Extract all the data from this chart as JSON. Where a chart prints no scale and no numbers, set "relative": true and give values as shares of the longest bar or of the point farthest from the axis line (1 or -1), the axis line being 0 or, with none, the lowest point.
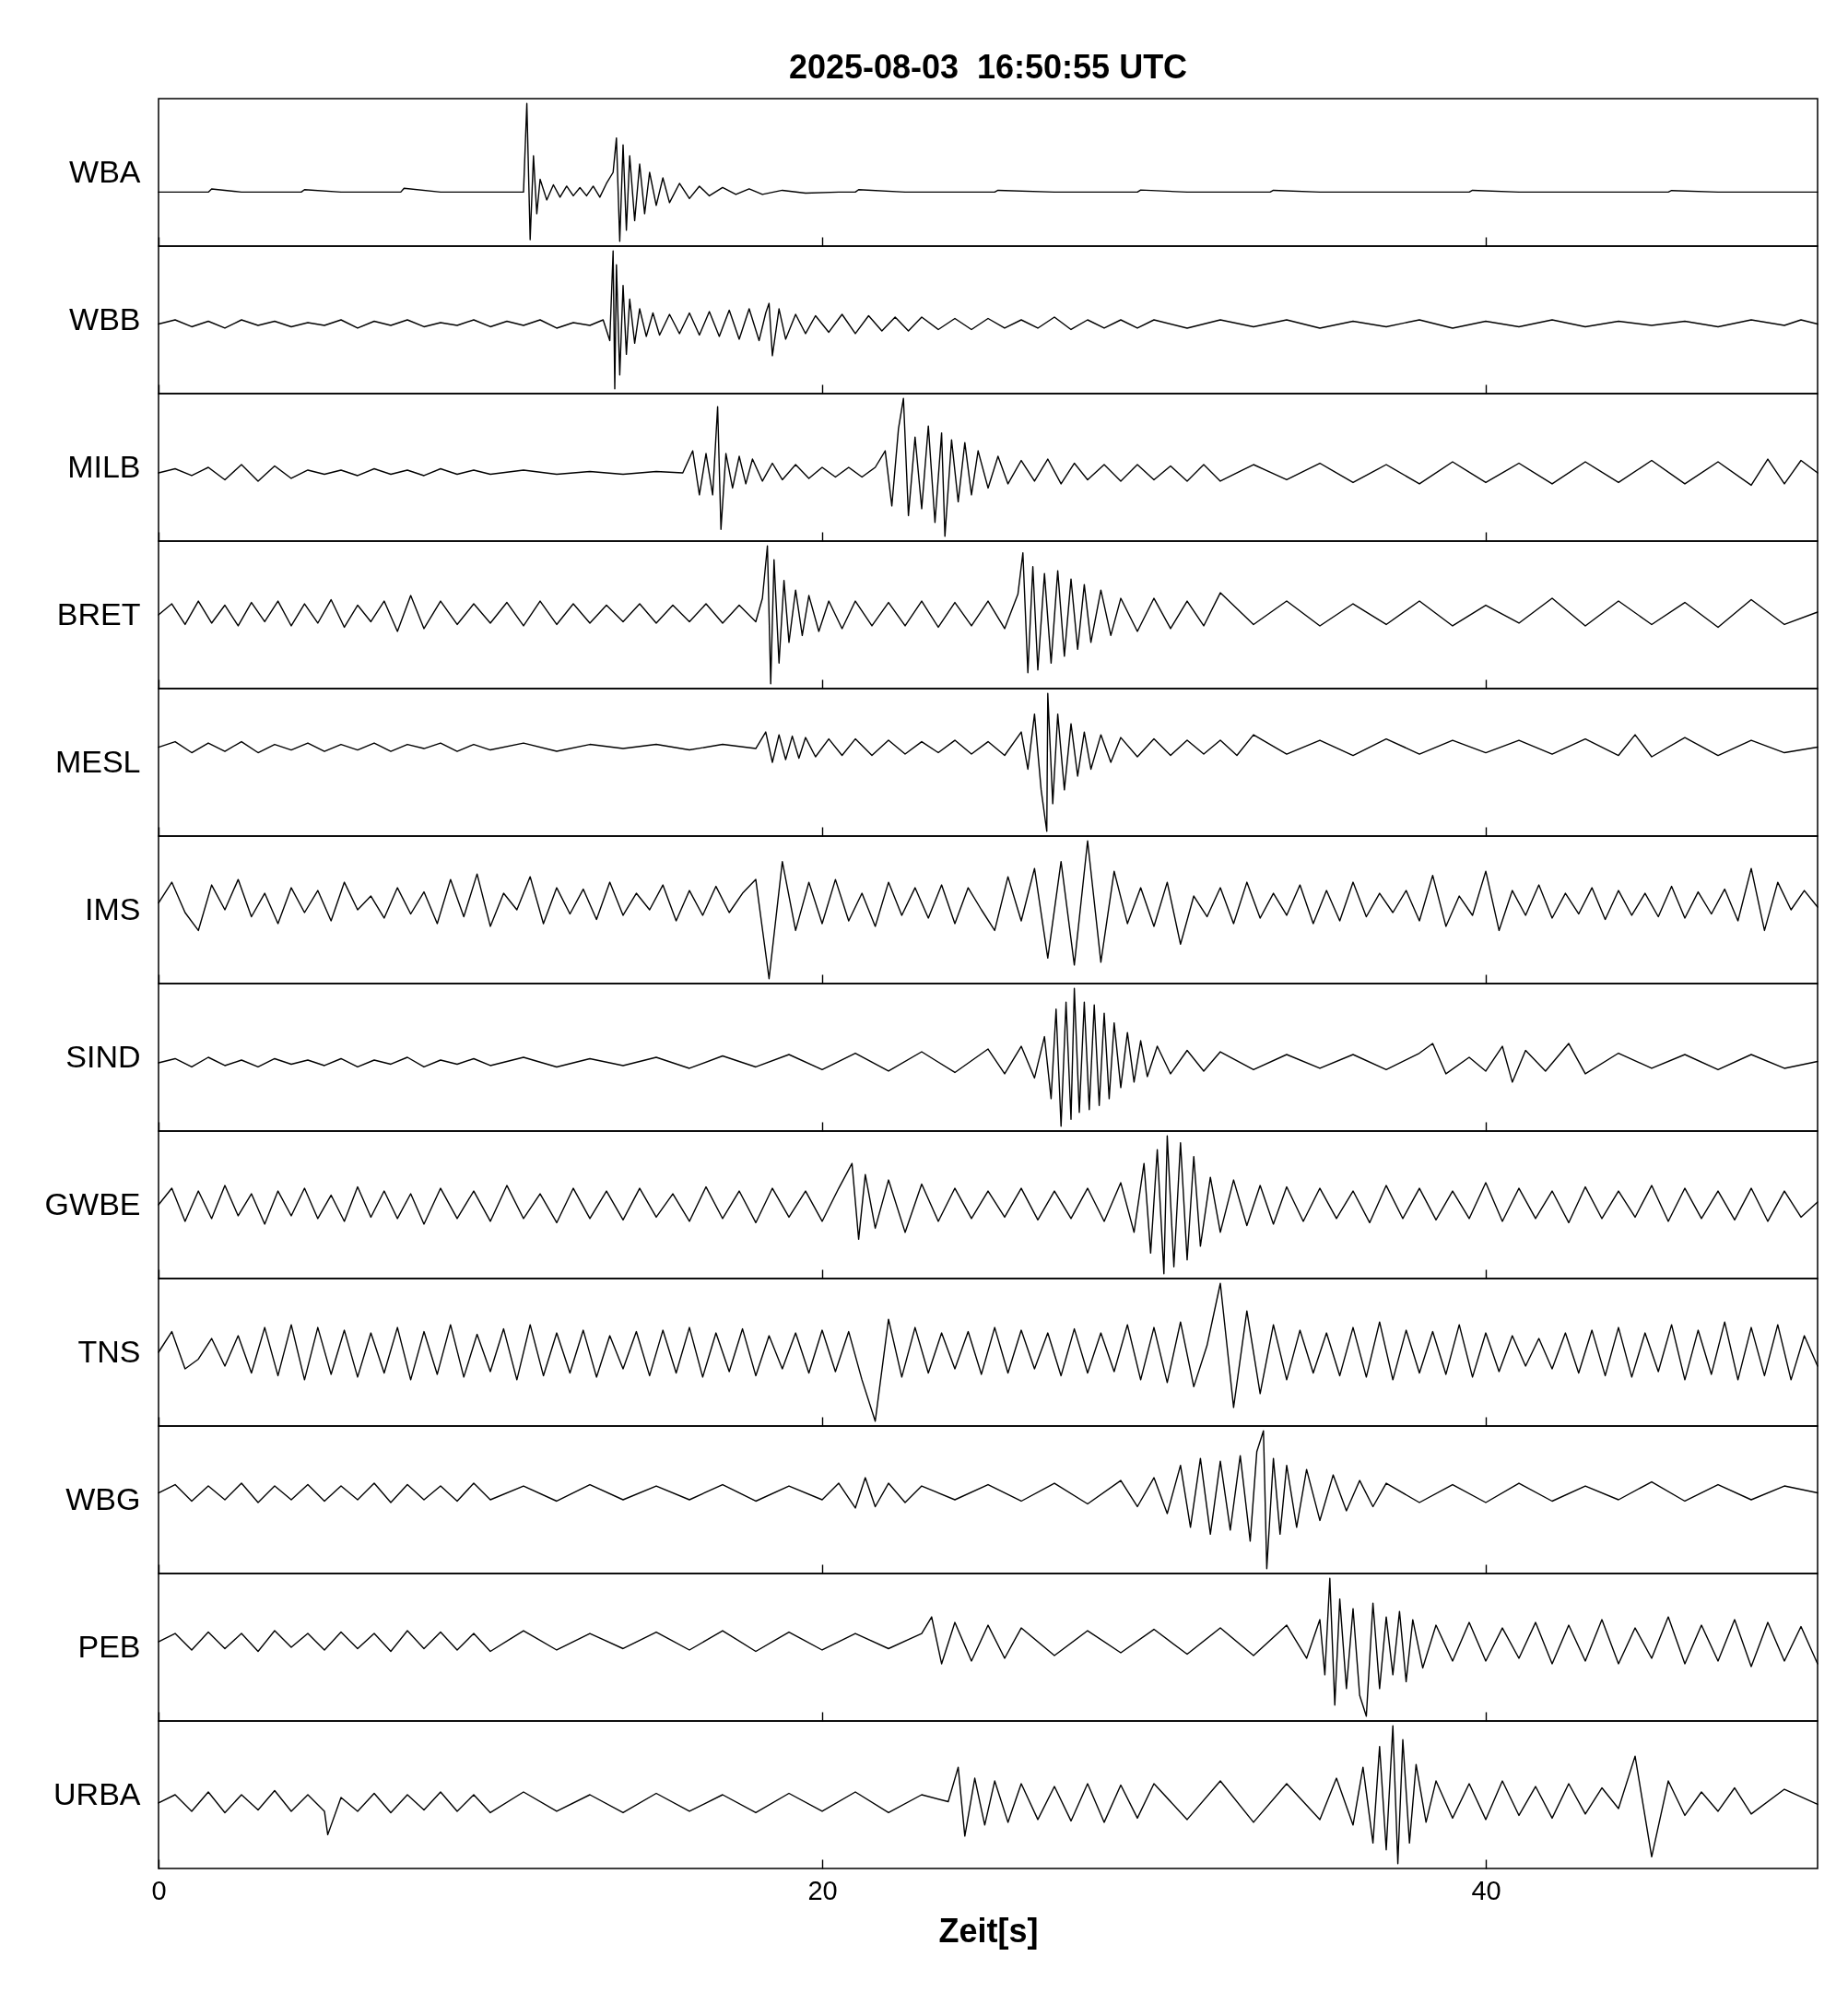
{
  "chart_data": [
    {
      "type": "line",
      "title": "2025-08-03  16:50:55 UTC",
      "ylabel": "WBA",
      "color": "#000000",
      "relative": true,
      "xlim": [
        0,
        50
      ],
      "xticks": [
        0,
        20,
        40
      ],
      "tick_labels": false,
      "x": [
        0,
        1,
        1.5,
        1.6,
        2.5,
        3.5,
        4.3,
        4.4,
        5.5,
        6.5,
        7.3,
        7.4,
        8.5,
        9.5,
        10.5,
        11.0,
        11.1,
        11.2,
        11.3,
        11.4,
        11.5,
        11.7,
        11.9,
        12.1,
        12.3,
        12.5,
        12.7,
        12.9,
        13.1,
        13.3,
        13.5,
        13.7,
        13.8,
        13.9,
        14.0,
        14.1,
        14.2,
        14.35,
        14.5,
        14.65,
        14.8,
        15.0,
        15.2,
        15.4,
        15.7,
        16.0,
        16.3,
        16.6,
        17.0,
        17.4,
        17.8,
        18.2,
        18.8,
        19.5,
        20.5,
        21.0,
        21.1,
        22.5,
        24,
        25.2,
        25.3,
        27,
        28.5,
        29.5,
        29.6,
        31,
        32.5,
        33.5,
        33.6,
        35,
        36.5,
        38,
        39.5,
        39.6,
        41,
        42.5,
        44,
        45.5,
        45.6,
        47,
        48.5,
        50
      ],
      "values": [
        0.357,
        0.357,
        0.357,
        0.38,
        0.357,
        0.357,
        0.357,
        0.375,
        0.357,
        0.357,
        0.357,
        0.385,
        0.357,
        0.357,
        0.357,
        0.357,
        1,
        0.012,
        0.62,
        0.2,
        0.45,
        0.3,
        0.41,
        0.32,
        0.4,
        0.33,
        0.39,
        0.33,
        0.4,
        0.32,
        0.42,
        0.5,
        0.75,
        0,
        0.7,
        0.08,
        0.62,
        0.15,
        0.56,
        0.2,
        0.5,
        0.26,
        0.46,
        0.28,
        0.42,
        0.31,
        0.4,
        0.33,
        0.39,
        0.34,
        0.38,
        0.34,
        0.37,
        0.35,
        0.357,
        0.357,
        0.375,
        0.357,
        0.357,
        0.357,
        0.37,
        0.357,
        0.357,
        0.357,
        0.372,
        0.357,
        0.357,
        0.357,
        0.37,
        0.357,
        0.357,
        0.357,
        0.357,
        0.37,
        0.357,
        0.357,
        0.357,
        0.357,
        0.368,
        0.357,
        0.357,
        0.357
      ]
    },
    {
      "type": "line",
      "ylabel": "WBB",
      "color": "#000000",
      "relative": true,
      "xlim": [
        0,
        50
      ],
      "xticks": [
        0,
        20,
        40
      ],
      "tick_labels": false,
      "x": [
        0,
        0.5,
        1,
        1.5,
        2,
        2.5,
        3,
        3.5,
        4,
        4.5,
        5,
        5.5,
        6,
        6.5,
        7,
        7.5,
        8,
        8.5,
        9,
        9.5,
        10,
        10.5,
        11,
        11.5,
        12,
        12.5,
        13,
        13.4,
        13.6,
        13.7,
        13.75,
        13.8,
        13.9,
        14.0,
        14.1,
        14.2,
        14.35,
        14.5,
        14.7,
        14.9,
        15.1,
        15.4,
        15.7,
        16,
        16.3,
        16.6,
        16.9,
        17.2,
        17.5,
        17.8,
        18.1,
        18.3,
        18.4,
        18.5,
        18.7,
        18.9,
        19.2,
        19.5,
        19.8,
        20.2,
        20.6,
        21,
        21.4,
        21.8,
        22.2,
        22.6,
        23,
        23.5,
        24,
        24.5,
        25,
        25.5,
        26,
        26.5,
        27,
        27.5,
        28,
        28.5,
        29,
        29.5,
        30,
        31,
        32,
        33,
        34,
        35,
        36,
        37,
        38,
        39,
        40,
        41,
        42,
        43,
        44,
        45,
        46,
        47,
        48,
        49,
        49.5,
        50
      ],
      "values": [
        0.47,
        0.5,
        0.45,
        0.49,
        0.44,
        0.5,
        0.46,
        0.49,
        0.45,
        0.48,
        0.46,
        0.5,
        0.44,
        0.49,
        0.46,
        0.5,
        0.45,
        0.48,
        0.46,
        0.5,
        0.45,
        0.49,
        0.46,
        0.5,
        0.44,
        0.48,
        0.46,
        0.5,
        0.35,
        1,
        0,
        0.9,
        0.1,
        0.75,
        0.25,
        0.65,
        0.33,
        0.58,
        0.38,
        0.55,
        0.39,
        0.54,
        0.4,
        0.55,
        0.39,
        0.56,
        0.38,
        0.57,
        0.36,
        0.58,
        0.35,
        0.55,
        0.62,
        0.24,
        0.58,
        0.36,
        0.54,
        0.4,
        0.53,
        0.41,
        0.54,
        0.4,
        0.53,
        0.42,
        0.52,
        0.42,
        0.52,
        0.43,
        0.51,
        0.43,
        0.51,
        0.44,
        0.5,
        0.44,
        0.52,
        0.43,
        0.5,
        0.44,
        0.5,
        0.44,
        0.5,
        0.44,
        0.5,
        0.45,
        0.5,
        0.44,
        0.49,
        0.45,
        0.5,
        0.44,
        0.49,
        0.45,
        0.5,
        0.45,
        0.49,
        0.46,
        0.49,
        0.45,
        0.5,
        0.46,
        0.5,
        0.47
      ]
    },
    {
      "type": "line",
      "ylabel": "MILB",
      "color": "#000000",
      "relative": true,
      "xlim": [
        0,
        50
      ],
      "xticks": [
        0,
        20,
        40
      ],
      "tick_labels": false,
      "x": [
        0,
        0.5,
        1,
        1.5,
        2,
        2.5,
        3,
        3.5,
        4,
        4.5,
        5,
        5.5,
        6,
        6.5,
        7,
        7.5,
        8,
        8.5,
        9,
        9.5,
        10,
        11,
        12,
        13,
        14,
        15,
        15.8,
        16.1,
        16.3,
        16.5,
        16.7,
        16.85,
        16.95,
        17.1,
        17.3,
        17.5,
        17.7,
        17.9,
        18.2,
        18.5,
        18.8,
        19.2,
        19.6,
        20,
        20.4,
        20.8,
        21.2,
        21.6,
        21.9,
        22.1,
        22.3,
        22.45,
        22.6,
        22.8,
        23,
        23.2,
        23.4,
        23.6,
        23.7,
        23.9,
        24.1,
        24.3,
        24.5,
        24.7,
        25,
        25.3,
        25.6,
        26,
        26.4,
        26.8,
        27.2,
        27.6,
        28,
        28.5,
        29,
        29.5,
        30,
        30.5,
        31,
        31.5,
        32,
        33,
        34,
        35,
        36,
        37,
        38,
        39,
        40,
        41,
        42,
        43,
        44,
        45,
        46,
        47,
        48,
        48.5,
        49,
        49.5,
        50
      ],
      "values": [
        0.46,
        0.49,
        0.44,
        0.5,
        0.41,
        0.52,
        0.4,
        0.51,
        0.42,
        0.48,
        0.45,
        0.48,
        0.44,
        0.49,
        0.45,
        0.48,
        0.44,
        0.49,
        0.45,
        0.48,
        0.45,
        0.48,
        0.45,
        0.47,
        0.45,
        0.47,
        0.46,
        0.62,
        0.3,
        0.6,
        0.3,
        0.94,
        0.05,
        0.6,
        0.35,
        0.58,
        0.38,
        0.56,
        0.4,
        0.53,
        0.41,
        0.52,
        0.42,
        0.5,
        0.43,
        0.5,
        0.43,
        0.5,
        0.62,
        0.22,
        0.78,
        1,
        0.15,
        0.72,
        0.2,
        0.8,
        0.1,
        0.75,
        0,
        0.7,
        0.25,
        0.68,
        0.3,
        0.62,
        0.35,
        0.58,
        0.38,
        0.55,
        0.4,
        0.56,
        0.38,
        0.53,
        0.41,
        0.52,
        0.4,
        0.52,
        0.41,
        0.51,
        0.4,
        0.52,
        0.4,
        0.52,
        0.41,
        0.53,
        0.39,
        0.52,
        0.38,
        0.54,
        0.39,
        0.53,
        0.38,
        0.54,
        0.39,
        0.55,
        0.38,
        0.54,
        0.37,
        0.56,
        0.38,
        0.55,
        0.46
      ]
    },
    {
      "type": "line",
      "ylabel": "BRET",
      "color": "#000000",
      "relative": true,
      "xlim": [
        0,
        50
      ],
      "xticks": [
        0,
        20,
        40
      ],
      "tick_labels": false,
      "x": [
        0,
        0.4,
        0.8,
        1.2,
        1.6,
        2,
        2.4,
        2.8,
        3.2,
        3.6,
        4,
        4.4,
        4.8,
        5.2,
        5.6,
        6,
        6.4,
        6.8,
        7.2,
        7.6,
        8,
        8.5,
        9,
        9.5,
        10,
        10.5,
        11,
        11.5,
        12,
        12.5,
        13,
        13.5,
        14,
        14.5,
        15,
        15.5,
        16,
        16.5,
        17,
        17.5,
        18,
        18.2,
        18.35,
        18.45,
        18.55,
        18.7,
        18.85,
        19,
        19.2,
        19.4,
        19.6,
        19.9,
        20.2,
        20.6,
        21,
        21.5,
        22,
        22.5,
        23,
        23.5,
        24,
        24.5,
        25,
        25.5,
        25.9,
        26.05,
        26.2,
        26.35,
        26.5,
        26.7,
        26.9,
        27.1,
        27.3,
        27.5,
        27.7,
        27.9,
        28.1,
        28.4,
        28.7,
        29,
        29.5,
        30,
        30.5,
        31,
        31.5,
        32,
        33,
        34,
        35,
        36,
        37,
        38,
        39,
        40,
        41,
        42,
        43,
        44,
        45,
        46,
        47,
        48,
        49,
        50
      ],
      "values": [
        0.5,
        0.58,
        0.43,
        0.6,
        0.44,
        0.57,
        0.42,
        0.59,
        0.45,
        0.6,
        0.42,
        0.58,
        0.44,
        0.61,
        0.41,
        0.57,
        0.45,
        0.6,
        0.38,
        0.64,
        0.4,
        0.6,
        0.43,
        0.58,
        0.44,
        0.59,
        0.42,
        0.6,
        0.43,
        0.58,
        0.44,
        0.57,
        0.45,
        0.58,
        0.44,
        0.57,
        0.45,
        0.58,
        0.44,
        0.57,
        0.45,
        0.62,
        1,
        0,
        0.9,
        0.15,
        0.75,
        0.3,
        0.68,
        0.35,
        0.64,
        0.38,
        0.6,
        0.4,
        0.6,
        0.42,
        0.59,
        0.42,
        0.6,
        0.41,
        0.59,
        0.42,
        0.6,
        0.4,
        0.65,
        0.95,
        0.08,
        0.85,
        0.1,
        0.8,
        0.15,
        0.82,
        0.2,
        0.76,
        0.25,
        0.72,
        0.3,
        0.68,
        0.35,
        0.62,
        0.38,
        0.62,
        0.4,
        0.6,
        0.42,
        0.66,
        0.43,
        0.6,
        0.42,
        0.58,
        0.43,
        0.6,
        0.42,
        0.57,
        0.44,
        0.62,
        0.42,
        0.6,
        0.43,
        0.59,
        0.41,
        0.61,
        0.43,
        0.52
      ]
    },
    {
      "type": "line",
      "ylabel": "MESL",
      "color": "#000000",
      "relative": true,
      "xlim": [
        0,
        50
      ],
      "xticks": [
        0,
        20,
        40
      ],
      "tick_labels": false,
      "x": [
        0,
        0.5,
        1,
        1.5,
        2,
        2.5,
        3,
        3.5,
        4,
        4.5,
        5,
        5.5,
        6,
        6.5,
        7,
        7.5,
        8,
        8.5,
        9,
        9.5,
        10,
        11,
        12,
        13,
        14,
        15,
        16,
        17,
        18,
        18.3,
        18.5,
        18.7,
        18.9,
        19.1,
        19.3,
        19.5,
        19.8,
        20.2,
        20.6,
        21,
        21.5,
        22,
        22.5,
        23,
        23.5,
        24,
        24.5,
        25,
        25.5,
        26,
        26.2,
        26.4,
        26.6,
        26.77,
        26.8,
        26.95,
        27.1,
        27.3,
        27.5,
        27.7,
        27.9,
        28.1,
        28.4,
        28.7,
        29,
        29.5,
        30,
        30.5,
        31,
        31.5,
        32,
        32.5,
        33,
        34,
        35,
        36,
        37,
        38,
        39,
        40,
        41,
        42,
        43,
        44,
        44.5,
        45,
        46,
        47,
        48,
        49,
        50
      ],
      "values": [
        0.61,
        0.65,
        0.57,
        0.64,
        0.58,
        0.65,
        0.57,
        0.63,
        0.59,
        0.64,
        0.58,
        0.63,
        0.59,
        0.64,
        0.58,
        0.63,
        0.6,
        0.64,
        0.58,
        0.63,
        0.59,
        0.64,
        0.58,
        0.63,
        0.6,
        0.63,
        0.59,
        0.63,
        0.6,
        0.72,
        0.5,
        0.7,
        0.52,
        0.69,
        0.53,
        0.68,
        0.54,
        0.67,
        0.55,
        0.67,
        0.55,
        0.66,
        0.56,
        0.65,
        0.57,
        0.66,
        0.56,
        0.65,
        0.55,
        0.72,
        0.45,
        0.85,
        0.3,
        0,
        1,
        0.2,
        0.85,
        0.3,
        0.78,
        0.4,
        0.72,
        0.45,
        0.7,
        0.5,
        0.68,
        0.54,
        0.67,
        0.55,
        0.66,
        0.56,
        0.66,
        0.55,
        0.7,
        0.56,
        0.66,
        0.55,
        0.67,
        0.56,
        0.66,
        0.57,
        0.66,
        0.56,
        0.67,
        0.55,
        0.7,
        0.54,
        0.68,
        0.55,
        0.66,
        0.57,
        0.61
      ]
    },
    {
      "type": "line",
      "ylabel": "IMS",
      "color": "#000000",
      "relative": true,
      "xlim": [
        0,
        50
      ],
      "xticks": [
        0,
        20,
        40
      ],
      "tick_labels": false,
      "x": [
        0,
        0.4,
        0.8,
        1.2,
        1.6,
        2,
        2.4,
        2.8,
        3.2,
        3.6,
        4,
        4.4,
        4.8,
        5.2,
        5.6,
        6,
        6.4,
        6.8,
        7.2,
        7.6,
        8,
        8.4,
        8.8,
        9.2,
        9.6,
        10,
        10.4,
        10.8,
        11.2,
        11.6,
        12,
        12.4,
        12.8,
        13.2,
        13.6,
        14,
        14.4,
        14.8,
        15.2,
        15.6,
        16,
        16.4,
        16.8,
        17.2,
        17.6,
        18,
        18.4,
        18.8,
        19.2,
        19.6,
        20,
        20.4,
        20.8,
        21.2,
        21.6,
        22,
        22.4,
        22.8,
        23.2,
        23.6,
        24,
        24.4,
        24.8,
        25.2,
        25.6,
        26,
        26.4,
        26.8,
        27.2,
        27.6,
        28,
        28.4,
        28.8,
        29.2,
        29.6,
        30,
        30.4,
        30.8,
        31.2,
        31.6,
        32,
        32.4,
        32.8,
        33.2,
        33.6,
        34,
        34.4,
        34.8,
        35.2,
        35.6,
        36,
        36.4,
        36.8,
        37.2,
        37.6,
        38,
        38.4,
        38.8,
        39.2,
        39.6,
        40,
        40.4,
        40.8,
        41.2,
        41.6,
        42,
        42.4,
        42.8,
        43.2,
        43.6,
        44,
        44.4,
        44.8,
        45.2,
        45.6,
        46,
        46.4,
        46.8,
        47.2,
        47.6,
        48,
        48.4,
        48.8,
        49.2,
        49.6,
        50
      ],
      "values": [
        0.55,
        0.7,
        0.48,
        0.35,
        0.68,
        0.5,
        0.72,
        0.45,
        0.62,
        0.4,
        0.66,
        0.48,
        0.64,
        0.42,
        0.7,
        0.5,
        0.6,
        0.44,
        0.66,
        0.47,
        0.63,
        0.4,
        0.72,
        0.45,
        0.76,
        0.38,
        0.62,
        0.5,
        0.74,
        0.4,
        0.66,
        0.47,
        0.65,
        0.43,
        0.7,
        0.46,
        0.62,
        0.5,
        0.68,
        0.42,
        0.64,
        0.46,
        0.67,
        0.48,
        0.62,
        0.72,
        0,
        0.85,
        0.35,
        0.7,
        0.4,
        0.72,
        0.42,
        0.62,
        0.38,
        0.7,
        0.46,
        0.66,
        0.44,
        0.68,
        0.4,
        0.66,
        0.5,
        0.35,
        0.74,
        0.42,
        0.8,
        0.15,
        0.85,
        0.1,
        1,
        0.12,
        0.78,
        0.4,
        0.66,
        0.38,
        0.7,
        0.25,
        0.6,
        0.45,
        0.66,
        0.4,
        0.7,
        0.44,
        0.62,
        0.46,
        0.68,
        0.4,
        0.64,
        0.42,
        0.7,
        0.45,
        0.62,
        0.48,
        0.64,
        0.42,
        0.75,
        0.38,
        0.6,
        0.46,
        0.78,
        0.35,
        0.64,
        0.46,
        0.68,
        0.44,
        0.62,
        0.47,
        0.66,
        0.43,
        0.64,
        0.46,
        0.62,
        0.45,
        0.67,
        0.44,
        0.63,
        0.47,
        0.65,
        0.42,
        0.8,
        0.35,
        0.7,
        0.5,
        0.64,
        0.52
      ]
    },
    {
      "type": "line",
      "ylabel": "SIND",
      "color": "#000000",
      "relative": true,
      "xlim": [
        0,
        50
      ],
      "xticks": [
        0,
        20,
        40
      ],
      "tick_labels": false,
      "x": [
        0,
        0.5,
        1,
        1.5,
        2,
        2.5,
        3,
        3.5,
        4,
        4.5,
        5,
        5.5,
        6,
        6.5,
        7,
        7.5,
        8,
        8.5,
        9,
        9.5,
        10,
        11,
        12,
        13,
        14,
        15,
        16,
        17,
        18,
        19,
        20,
        21,
        22,
        23,
        24,
        25,
        25.5,
        26,
        26.4,
        26.7,
        26.9,
        27.05,
        27.2,
        27.35,
        27.5,
        27.6,
        27.75,
        27.9,
        28.05,
        28.2,
        28.35,
        28.5,
        28.65,
        28.8,
        29,
        29.2,
        29.4,
        29.6,
        29.8,
        30.1,
        30.5,
        31,
        31.5,
        32,
        33,
        34,
        35,
        36,
        37,
        38,
        38.4,
        38.8,
        39.5,
        40,
        40.5,
        40.8,
        41.2,
        41.8,
        42.5,
        43,
        44,
        45,
        46,
        47,
        48,
        49,
        50
      ],
      "values": [
        0.46,
        0.49,
        0.43,
        0.5,
        0.44,
        0.48,
        0.43,
        0.49,
        0.45,
        0.48,
        0.44,
        0.49,
        0.43,
        0.48,
        0.45,
        0.5,
        0.43,
        0.48,
        0.45,
        0.49,
        0.44,
        0.5,
        0.43,
        0.49,
        0.44,
        0.5,
        0.42,
        0.51,
        0.43,
        0.52,
        0.41,
        0.53,
        0.4,
        0.54,
        0.39,
        0.56,
        0.38,
        0.58,
        0.35,
        0.65,
        0.2,
        0.85,
        0,
        0.9,
        0.05,
        1,
        0.1,
        0.9,
        0.12,
        0.88,
        0.15,
        0.82,
        0.2,
        0.75,
        0.28,
        0.68,
        0.32,
        0.62,
        0.36,
        0.58,
        0.38,
        0.55,
        0.4,
        0.54,
        0.41,
        0.52,
        0.42,
        0.52,
        0.41,
        0.53,
        0.6,
        0.38,
        0.5,
        0.4,
        0.58,
        0.32,
        0.55,
        0.4,
        0.6,
        0.38,
        0.53,
        0.42,
        0.52,
        0.41,
        0.52,
        0.42,
        0.47
      ]
    },
    {
      "type": "line",
      "ylabel": "GWBE",
      "color": "#000000",
      "relative": true,
      "xlim": [
        0,
        50
      ],
      "xticks": [
        0,
        20,
        40
      ],
      "tick_labels": false,
      "x": [
        0,
        0.4,
        0.8,
        1.2,
        1.6,
        2,
        2.4,
        2.8,
        3.2,
        3.6,
        4,
        4.4,
        4.8,
        5.2,
        5.6,
        6,
        6.4,
        6.8,
        7.2,
        7.6,
        8,
        8.5,
        9,
        9.5,
        10,
        10.5,
        11,
        11.5,
        12,
        12.5,
        13,
        13.5,
        14,
        14.5,
        15,
        15.5,
        16,
        16.5,
        17,
        17.5,
        18,
        18.5,
        19,
        19.5,
        20,
        20.5,
        20.9,
        21.1,
        21.3,
        21.6,
        22,
        22.5,
        23,
        23.5,
        24,
        24.5,
        25,
        25.5,
        26,
        26.5,
        27,
        27.5,
        28,
        28.5,
        29,
        29.4,
        29.7,
        29.9,
        30.1,
        30.3,
        30.4,
        30.6,
        30.8,
        31,
        31.2,
        31.4,
        31.7,
        32,
        32.4,
        32.8,
        33.2,
        33.6,
        34,
        34.5,
        35,
        35.5,
        36,
        36.5,
        37,
        37.5,
        38,
        38.5,
        39,
        39.5,
        40,
        40.5,
        41,
        41.5,
        42,
        42.5,
        43,
        43.5,
        44,
        44.5,
        45,
        45.5,
        46,
        46.5,
        47,
        47.5,
        48,
        48.5,
        49,
        49.5,
        50
      ],
      "values": [
        0.5,
        0.62,
        0.38,
        0.6,
        0.4,
        0.64,
        0.42,
        0.58,
        0.36,
        0.6,
        0.42,
        0.62,
        0.4,
        0.57,
        0.38,
        0.63,
        0.41,
        0.6,
        0.4,
        0.58,
        0.36,
        0.62,
        0.4,
        0.6,
        0.38,
        0.64,
        0.4,
        0.58,
        0.37,
        0.62,
        0.4,
        0.6,
        0.39,
        0.62,
        0.41,
        0.58,
        0.38,
        0.63,
        0.4,
        0.6,
        0.37,
        0.62,
        0.41,
        0.6,
        0.38,
        0.62,
        0.8,
        0.25,
        0.72,
        0.33,
        0.68,
        0.3,
        0.65,
        0.38,
        0.62,
        0.4,
        0.6,
        0.41,
        0.62,
        0.39,
        0.6,
        0.4,
        0.62,
        0.38,
        0.66,
        0.3,
        0.8,
        0.15,
        0.9,
        0,
        1,
        0.05,
        0.95,
        0.1,
        0.85,
        0.2,
        0.7,
        0.3,
        0.68,
        0.35,
        0.64,
        0.36,
        0.63,
        0.38,
        0.62,
        0.4,
        0.6,
        0.37,
        0.64,
        0.4,
        0.62,
        0.39,
        0.6,
        0.4,
        0.66,
        0.38,
        0.62,
        0.4,
        0.6,
        0.37,
        0.63,
        0.4,
        0.6,
        0.41,
        0.64,
        0.38,
        0.62,
        0.4,
        0.6,
        0.39,
        0.62,
        0.38,
        0.6,
        0.41,
        0.52
      ]
    },
    {
      "type": "line",
      "ylabel": "TNS",
      "color": "#000000",
      "relative": true,
      "xlim": [
        0,
        50
      ],
      "xticks": [
        0,
        20,
        40
      ],
      "tick_labels": false,
      "x": [
        0,
        0.4,
        0.8,
        1.2,
        1.6,
        2,
        2.4,
        2.8,
        3.2,
        3.6,
        4,
        4.4,
        4.8,
        5.2,
        5.6,
        6,
        6.4,
        6.8,
        7.2,
        7.6,
        8,
        8.4,
        8.8,
        9.2,
        9.6,
        10,
        10.4,
        10.8,
        11.2,
        11.6,
        12,
        12.4,
        12.8,
        13.2,
        13.6,
        14,
        14.4,
        14.8,
        15.2,
        15.6,
        16,
        16.4,
        16.8,
        17.2,
        17.6,
        18,
        18.4,
        18.8,
        19.2,
        19.6,
        20,
        20.4,
        20.8,
        21.2,
        21.6,
        22,
        22.4,
        22.8,
        23.2,
        23.6,
        24,
        24.4,
        24.8,
        25.2,
        25.6,
        26,
        26.4,
        26.8,
        27.2,
        27.6,
        28,
        28.4,
        28.8,
        29.2,
        29.6,
        30,
        30.4,
        30.8,
        31.2,
        31.6,
        32,
        32.4,
        32.8,
        33.2,
        33.6,
        34,
        34.4,
        34.8,
        35.2,
        35.6,
        36,
        36.4,
        36.8,
        37.2,
        37.6,
        38,
        38.4,
        38.8,
        39.2,
        39.6,
        40,
        40.4,
        40.8,
        41.2,
        41.6,
        42,
        42.4,
        42.8,
        43.2,
        43.6,
        44,
        44.4,
        44.8,
        45.2,
        45.6,
        46,
        46.4,
        46.8,
        47.2,
        47.6,
        48,
        48.4,
        48.8,
        49.2,
        49.6,
        50
      ],
      "values": [
        0.5,
        0.65,
        0.38,
        0.45,
        0.6,
        0.4,
        0.62,
        0.35,
        0.68,
        0.33,
        0.7,
        0.3,
        0.68,
        0.34,
        0.66,
        0.32,
        0.64,
        0.35,
        0.68,
        0.3,
        0.65,
        0.34,
        0.7,
        0.32,
        0.63,
        0.36,
        0.67,
        0.3,
        0.7,
        0.33,
        0.64,
        0.35,
        0.66,
        0.32,
        0.62,
        0.38,
        0.65,
        0.33,
        0.66,
        0.35,
        0.68,
        0.32,
        0.64,
        0.36,
        0.67,
        0.33,
        0.62,
        0.38,
        0.64,
        0.35,
        0.66,
        0.36,
        0.65,
        0.3,
        0,
        0.74,
        0.32,
        0.68,
        0.35,
        0.64,
        0.38,
        0.65,
        0.34,
        0.68,
        0.35,
        0.66,
        0.38,
        0.64,
        0.33,
        0.67,
        0.35,
        0.64,
        0.36,
        0.7,
        0.3,
        0.68,
        0.28,
        0.72,
        0.25,
        0.55,
        1,
        0.1,
        0.8,
        0.2,
        0.7,
        0.3,
        0.66,
        0.35,
        0.64,
        0.33,
        0.68,
        0.32,
        0.72,
        0.3,
        0.66,
        0.35,
        0.65,
        0.34,
        0.7,
        0.32,
        0.64,
        0.36,
        0.62,
        0.4,
        0.6,
        0.38,
        0.64,
        0.35,
        0.66,
        0.33,
        0.68,
        0.32,
        0.64,
        0.36,
        0.7,
        0.3,
        0.66,
        0.34,
        0.72,
        0.3,
        0.68,
        0.33,
        0.7,
        0.3,
        0.62,
        0.4
      ]
    },
    {
      "type": "line",
      "ylabel": "WBG",
      "color": "#000000",
      "relative": true,
      "xlim": [
        0,
        50
      ],
      "xticks": [
        0,
        20,
        40
      ],
      "tick_labels": false,
      "x": [
        0,
        0.5,
        1,
        1.5,
        2,
        2.5,
        3,
        3.5,
        4,
        4.5,
        5,
        5.5,
        6,
        6.5,
        7,
        7.5,
        8,
        8.5,
        9,
        9.5,
        10,
        11,
        12,
        13,
        14,
        15,
        16,
        17,
        18,
        19,
        20,
        20.5,
        21,
        21.3,
        21.6,
        22,
        22.5,
        23,
        24,
        25,
        26,
        27,
        28,
        29,
        29.5,
        30,
        30.4,
        30.8,
        31.1,
        31.4,
        31.7,
        32,
        32.3,
        32.6,
        32.9,
        33.1,
        33.3,
        33.4,
        33.6,
        33.8,
        34,
        34.3,
        34.6,
        35,
        35.4,
        35.8,
        36.2,
        36.6,
        37,
        38,
        39,
        40,
        41,
        42,
        43,
        44,
        45,
        46,
        47,
        48,
        49,
        50
      ],
      "values": [
        0.55,
        0.61,
        0.49,
        0.6,
        0.5,
        0.62,
        0.48,
        0.6,
        0.5,
        0.61,
        0.49,
        0.6,
        0.5,
        0.62,
        0.48,
        0.61,
        0.5,
        0.6,
        0.49,
        0.62,
        0.5,
        0.6,
        0.49,
        0.61,
        0.5,
        0.6,
        0.5,
        0.61,
        0.49,
        0.6,
        0.5,
        0.62,
        0.44,
        0.66,
        0.45,
        0.62,
        0.48,
        0.6,
        0.5,
        0.61,
        0.49,
        0.62,
        0.47,
        0.64,
        0.45,
        0.66,
        0.4,
        0.75,
        0.3,
        0.8,
        0.25,
        0.78,
        0.28,
        0.82,
        0.2,
        0.85,
        1,
        0,
        0.8,
        0.25,
        0.75,
        0.3,
        0.72,
        0.35,
        0.68,
        0.42,
        0.64,
        0.45,
        0.62,
        0.48,
        0.61,
        0.48,
        0.62,
        0.49,
        0.6,
        0.5,
        0.63,
        0.49,
        0.61,
        0.5,
        0.6,
        0.55
      ]
    },
    {
      "type": "line",
      "ylabel": "PEB",
      "color": "#000000",
      "relative": true,
      "xlim": [
        0,
        50
      ],
      "xticks": [
        0,
        20,
        40
      ],
      "tick_labels": false,
      "x": [
        0,
        0.5,
        1,
        1.5,
        2,
        2.5,
        3,
        3.5,
        4,
        4.5,
        5,
        5.5,
        6,
        6.5,
        7,
        7.5,
        8,
        8.5,
        9,
        9.5,
        10,
        11,
        12,
        13,
        14,
        15,
        16,
        17,
        18,
        19,
        20,
        21,
        22,
        23,
        23.3,
        23.6,
        24,
        24.5,
        25,
        25.5,
        26,
        27,
        28,
        29,
        30,
        31,
        32,
        33,
        34,
        34.6,
        35,
        35.15,
        35.3,
        35.45,
        35.6,
        35.8,
        36,
        36.2,
        36.4,
        36.6,
        36.8,
        37,
        37.2,
        37.4,
        37.6,
        37.8,
        38.1,
        38.5,
        39,
        39.5,
        40,
        40.5,
        41,
        41.5,
        42,
        42.5,
        43,
        43.5,
        44,
        44.5,
        45,
        45.5,
        46,
        46.5,
        47,
        47.5,
        48,
        48.5,
        49,
        49.5,
        50
      ],
      "values": [
        0.54,
        0.6,
        0.48,
        0.61,
        0.49,
        0.6,
        0.47,
        0.62,
        0.5,
        0.6,
        0.48,
        0.61,
        0.49,
        0.6,
        0.47,
        0.62,
        0.49,
        0.61,
        0.48,
        0.6,
        0.47,
        0.62,
        0.48,
        0.6,
        0.49,
        0.61,
        0.48,
        0.62,
        0.47,
        0.61,
        0.48,
        0.6,
        0.49,
        0.6,
        0.72,
        0.38,
        0.68,
        0.4,
        0.66,
        0.42,
        0.64,
        0.44,
        0.62,
        0.46,
        0.63,
        0.45,
        0.64,
        0.44,
        0.66,
        0.42,
        0.7,
        0.3,
        1,
        0.08,
        0.85,
        0.2,
        0.78,
        0.15,
        0,
        0.82,
        0.2,
        0.72,
        0.3,
        0.76,
        0.25,
        0.7,
        0.35,
        0.66,
        0.4,
        0.68,
        0.4,
        0.64,
        0.42,
        0.68,
        0.38,
        0.66,
        0.4,
        0.7,
        0.38,
        0.64,
        0.42,
        0.72,
        0.38,
        0.66,
        0.4,
        0.7,
        0.36,
        0.68,
        0.4,
        0.65,
        0.38
      ]
    },
    {
      "type": "line",
      "ylabel": "URBA",
      "xlabel": "Zeit[s]",
      "color": "#000000",
      "relative": true,
      "xlim": [
        0,
        50
      ],
      "xticks": [
        0,
        20,
        40
      ],
      "x": [
        0,
        0.5,
        1,
        1.5,
        2,
        2.5,
        3,
        3.5,
        4,
        4.5,
        5,
        5.1,
        5.5,
        6,
        6.5,
        7,
        7.5,
        8,
        8.5,
        9,
        9.5,
        10,
        11,
        12,
        13,
        14,
        15,
        16,
        17,
        18,
        19,
        20,
        21,
        22,
        23,
        23.8,
        24.1,
        24.3,
        24.6,
        24.9,
        25.2,
        25.6,
        26,
        26.5,
        27,
        27.5,
        28,
        28.5,
        29,
        29.5,
        30,
        31,
        32,
        33,
        34,
        35,
        35.5,
        36,
        36.3,
        36.6,
        36.8,
        37,
        37.2,
        37.35,
        37.5,
        37.7,
        37.9,
        38.2,
        38.5,
        39,
        39.5,
        40,
        40.5,
        41,
        41.5,
        42,
        42.5,
        43,
        43.5,
        44,
        44.5,
        45,
        45.5,
        46,
        46.5,
        47,
        47.5,
        48,
        49,
        50
      ],
      "values": [
        0.44,
        0.5,
        0.38,
        0.52,
        0.37,
        0.5,
        0.39,
        0.53,
        0.38,
        0.5,
        0.38,
        0.21,
        0.48,
        0.38,
        0.51,
        0.37,
        0.5,
        0.39,
        0.52,
        0.38,
        0.5,
        0.37,
        0.52,
        0.38,
        0.5,
        0.37,
        0.51,
        0.38,
        0.5,
        0.37,
        0.51,
        0.38,
        0.52,
        0.37,
        0.5,
        0.45,
        0.7,
        0.2,
        0.62,
        0.28,
        0.6,
        0.3,
        0.58,
        0.32,
        0.56,
        0.31,
        0.58,
        0.3,
        0.57,
        0.33,
        0.58,
        0.32,
        0.6,
        0.3,
        0.58,
        0.32,
        0.62,
        0.28,
        0.7,
        0.15,
        0.85,
        0.1,
        1,
        0,
        0.9,
        0.15,
        0.72,
        0.3,
        0.6,
        0.33,
        0.58,
        0.32,
        0.6,
        0.35,
        0.56,
        0.33,
        0.58,
        0.36,
        0.55,
        0.4,
        0.78,
        0.05,
        0.6,
        0.35,
        0.52,
        0.38,
        0.55,
        0.36,
        0.54,
        0.43
      ]
    }
  ]
}
